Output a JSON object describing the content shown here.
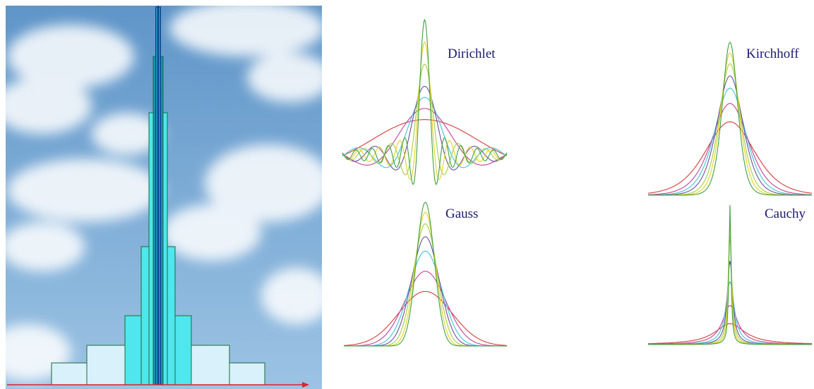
{
  "panels": [
    {
      "id": "dirichlet",
      "label": "Dirichlet",
      "kind": "dirichlet"
    },
    {
      "id": "kirchhoff",
      "label": "Kirchhoff",
      "kind": "kirchhoff"
    },
    {
      "id": "gauss",
      "label": "Gauss",
      "kind": "gauss"
    },
    {
      "id": "cauchy",
      "label": "Cauchy",
      "kind": "cauchy"
    }
  ],
  "colors": {
    "label": "#1a1a6e",
    "sky_top": "#5f95c8",
    "sky_bottom": "#9cc3e4",
    "bar_fill_light": "#d9f1fb",
    "bar_fill_mid": "#4fe6ee",
    "bar_fill_dark": "#1c8fb3",
    "bar_stroke": "#1a6a3a",
    "axis": "#e0202a",
    "curves": [
      "#d63a3a",
      "#c2409a",
      "#3fc4d4",
      "#6a4fa0",
      "#a0d040",
      "#e8d020",
      "#40a040",
      "#2a2ad0"
    ]
  },
  "bars": [
    {
      "level": 1,
      "shade": "light"
    },
    {
      "level": 2,
      "shade": "light"
    },
    {
      "level": 3,
      "shade": "mid"
    },
    {
      "level": 4,
      "shade": "mid"
    },
    {
      "level": 5,
      "shade": "mid"
    },
    {
      "level": 6,
      "shade": "dark"
    },
    {
      "level": 7,
      "shade": "dark"
    }
  ]
}
